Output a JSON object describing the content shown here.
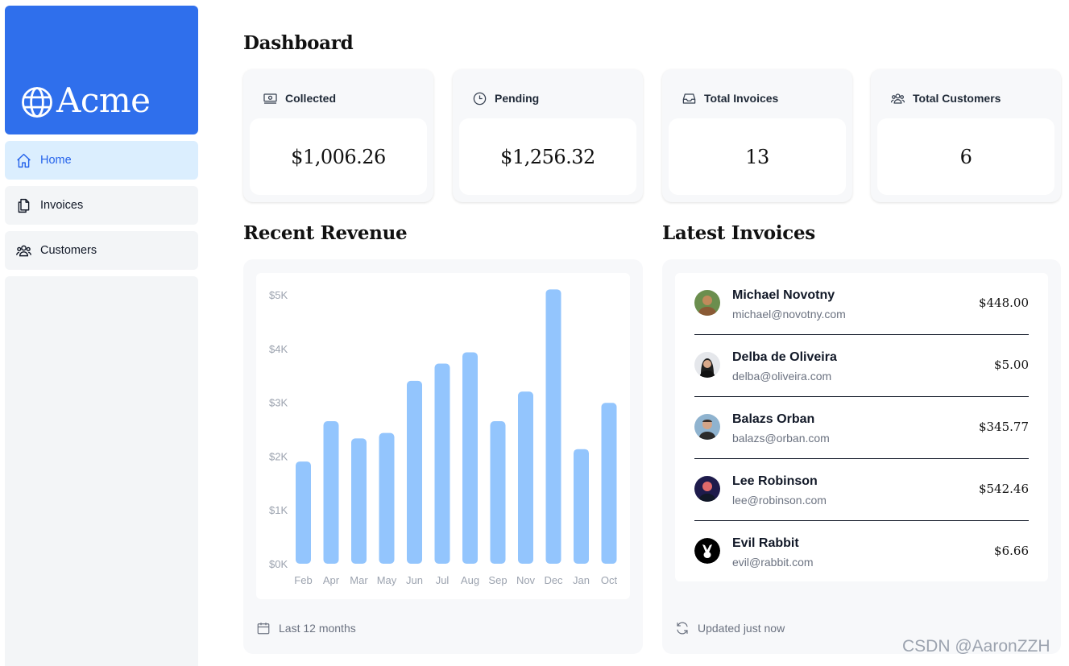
{
  "brand": {
    "name": "Acme"
  },
  "sidebar": {
    "items": [
      {
        "label": "Home",
        "active": true
      },
      {
        "label": "Invoices",
        "active": false
      },
      {
        "label": "Customers",
        "active": false
      }
    ]
  },
  "page": {
    "title": "Dashboard"
  },
  "cards": [
    {
      "title": "Collected",
      "value": "$1,006.26",
      "icon": "banknotes-icon"
    },
    {
      "title": "Pending",
      "value": "$1,256.32",
      "icon": "clock-icon"
    },
    {
      "title": "Total Invoices",
      "value": "13",
      "icon": "inbox-icon"
    },
    {
      "title": "Total Customers",
      "value": "6",
      "icon": "user-group-icon"
    }
  ],
  "revenue": {
    "title": "Recent Revenue",
    "footer": "Last 12 months"
  },
  "chart_data": {
    "type": "bar",
    "title": "Recent Revenue",
    "categories": [
      "Feb",
      "Apr",
      "Mar",
      "May",
      "Jun",
      "Jul",
      "Aug",
      "Sep",
      "Nov",
      "Dec",
      "Jan",
      "Oct"
    ],
    "values": [
      1900,
      2650,
      2330,
      2430,
      3400,
      3720,
      3930,
      2650,
      3200,
      5100,
      2130,
      2990
    ],
    "ylim": [
      0,
      5000
    ],
    "y_ticks": [
      "$5K",
      "$4K",
      "$3K",
      "$2K",
      "$1K",
      "$0K"
    ],
    "xlabel": "",
    "ylabel": "",
    "color": "#93c5fd"
  },
  "latest": {
    "title": "Latest Invoices",
    "footer": "Updated just now",
    "invoices": [
      {
        "name": "Michael Novotny",
        "email": "michael@novotny.com",
        "amount": "$448.00"
      },
      {
        "name": "Delba de Oliveira",
        "email": "delba@oliveira.com",
        "amount": "$5.00"
      },
      {
        "name": "Balazs Orban",
        "email": "balazs@orban.com",
        "amount": "$345.77"
      },
      {
        "name": "Lee Robinson",
        "email": "lee@robinson.com",
        "amount": "$542.46"
      },
      {
        "name": "Evil Rabbit",
        "email": "evil@rabbit.com",
        "amount": "$6.66"
      }
    ]
  },
  "watermark": "CSDN @AaronZZH",
  "colors": {
    "brand": "#2f6fec",
    "active_nav_bg": "#dbeefe",
    "active_nav_text": "#2563eb",
    "bar": "#93c5fd"
  }
}
